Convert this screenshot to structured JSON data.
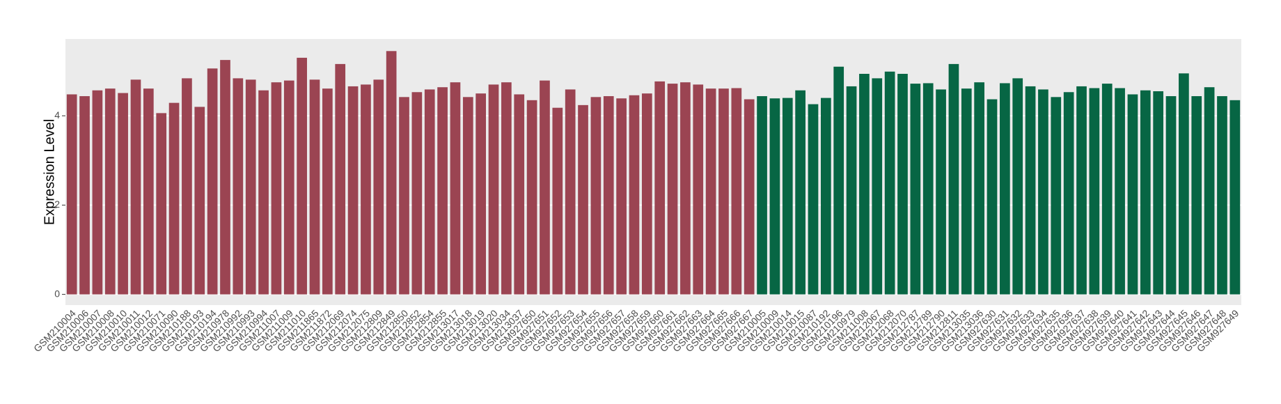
{
  "chart_data": {
    "type": "bar",
    "y_label": "Expression Level",
    "categories": [
      "GSM210004",
      "GSM210006",
      "GSM210007",
      "GSM210008",
      "GSM210010",
      "GSM210011",
      "GSM210012",
      "GSM210071",
      "GSM210090",
      "GSM210188",
      "GSM210193",
      "GSM210194",
      "GSM210978",
      "GSM210992",
      "GSM210993",
      "GSM210994",
      "GSM211007",
      "GSM211009",
      "GSM211010",
      "GSM211865",
      "GSM211872",
      "GSM212069",
      "GSM212074",
      "GSM212075",
      "GSM212809",
      "GSM212849",
      "GSM212850",
      "GSM212852",
      "GSM212854",
      "GSM212855",
      "GSM213017",
      "GSM213018",
      "GSM213019",
      "GSM213020",
      "GSM213034",
      "GSM213037",
      "GSM927650",
      "GSM927651",
      "GSM927652",
      "GSM927653",
      "GSM927654",
      "GSM927655",
      "GSM927656",
      "GSM927657",
      "GSM927658",
      "GSM927659",
      "GSM927660",
      "GSM927661",
      "GSM927662",
      "GSM927663",
      "GSM927664",
      "GSM927665",
      "GSM927666",
      "GSM927667",
      "GSM210005",
      "GSM210009",
      "GSM210014",
      "GSM210015",
      "GSM210087",
      "GSM210192",
      "GSM210196",
      "GSM210979",
      "GSM211008",
      "GSM212067",
      "GSM212068",
      "GSM212070",
      "GSM212787",
      "GSM212789",
      "GSM212790",
      "GSM212811",
      "GSM213035",
      "GSM213036",
      "GSM927630",
      "GSM927631",
      "GSM927632",
      "GSM927633",
      "GSM927634",
      "GSM927635",
      "GSM927636",
      "GSM927637",
      "GSM927638",
      "GSM927639",
      "GSM927640",
      "GSM927641",
      "GSM927642",
      "GSM927643",
      "GSM927644",
      "GSM927645",
      "GSM927646",
      "GSM927647",
      "GSM927648",
      "GSM927649"
    ],
    "values": [
      4.48,
      4.44,
      4.57,
      4.61,
      4.51,
      4.81,
      4.61,
      4.06,
      4.29,
      4.84,
      4.2,
      5.06,
      5.25,
      4.84,
      4.81,
      4.57,
      4.75,
      4.79,
      5.3,
      4.81,
      4.61,
      5.16,
      4.66,
      4.7,
      4.81,
      5.45,
      4.42,
      4.53,
      4.59,
      4.64,
      4.75,
      4.42,
      4.5,
      4.7,
      4.75,
      4.48,
      4.35,
      4.79,
      4.18,
      4.59,
      4.24,
      4.42,
      4.44,
      4.39,
      4.46,
      4.5,
      4.77,
      4.72,
      4.75,
      4.7,
      4.61,
      4.61,
      4.62,
      4.37,
      4.44,
      4.39,
      4.4,
      4.57,
      4.26,
      4.4,
      5.1,
      4.66,
      4.94,
      4.84,
      4.99,
      4.94,
      4.72,
      4.73,
      4.59,
      5.16,
      4.61,
      4.75,
      4.37,
      4.73,
      4.84,
      4.66,
      4.59,
      4.42,
      4.53,
      4.66,
      4.62,
      4.72,
      4.62,
      4.48,
      4.57,
      4.55,
      4.44,
      4.95,
      4.44,
      4.64,
      4.44,
      4.35
    ],
    "colors": [
      "#9b4452",
      "#9b4452",
      "#9b4452",
      "#9b4452",
      "#9b4452",
      "#9b4452",
      "#9b4452",
      "#9b4452",
      "#9b4452",
      "#9b4452",
      "#9b4452",
      "#9b4452",
      "#9b4452",
      "#9b4452",
      "#9b4452",
      "#9b4452",
      "#9b4452",
      "#9b4452",
      "#9b4452",
      "#9b4452",
      "#9b4452",
      "#9b4452",
      "#9b4452",
      "#9b4452",
      "#9b4452",
      "#9b4452",
      "#9b4452",
      "#9b4452",
      "#9b4452",
      "#9b4452",
      "#9b4452",
      "#9b4452",
      "#9b4452",
      "#9b4452",
      "#9b4452",
      "#9b4452",
      "#9b4452",
      "#9b4452",
      "#9b4452",
      "#9b4452",
      "#9b4452",
      "#9b4452",
      "#9b4452",
      "#9b4452",
      "#9b4452",
      "#9b4452",
      "#9b4452",
      "#9b4452",
      "#9b4452",
      "#9b4452",
      "#9b4452",
      "#9b4452",
      "#9b4452",
      "#9b4452",
      "#076644",
      "#076644",
      "#076644",
      "#076644",
      "#076644",
      "#076644",
      "#076644",
      "#076644",
      "#076644",
      "#076644",
      "#076644",
      "#076644",
      "#076644",
      "#076644",
      "#076644",
      "#076644",
      "#076644",
      "#076644",
      "#076644",
      "#076644",
      "#076644",
      "#076644",
      "#076644",
      "#076644",
      "#076644",
      "#076644",
      "#076644",
      "#076644",
      "#076644",
      "#076644",
      "#076644",
      "#076644",
      "#076644",
      "#076644",
      "#076644",
      "#076644",
      "#076644",
      "#076644"
    ],
    "ylim": [
      -0.24,
      5.72
    ],
    "yticks": [
      0,
      2,
      4
    ],
    "grid": true
  }
}
